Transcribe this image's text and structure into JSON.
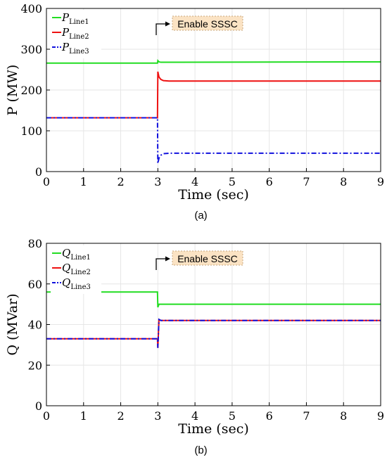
{
  "chart_data": [
    {
      "type": "line",
      "id": "a",
      "sublabel": "(a)",
      "xlabel": "Time (sec)",
      "ylabel": "P (MW)",
      "xlim": [
        0,
        9
      ],
      "ylim": [
        0,
        400
      ],
      "xticks": [
        0,
        1,
        2,
        3,
        4,
        5,
        6,
        7,
        8,
        9
      ],
      "yticks": [
        0,
        100,
        200,
        300,
        400
      ],
      "grid": true,
      "legend_position": "top-left",
      "annotation": {
        "text": "Enable SSSC",
        "x": 3.0
      },
      "series": [
        {
          "name": "P",
          "sub": "Line1",
          "color": "#22dd22",
          "dash": "solid",
          "x": [
            0,
            2.99,
            3.0,
            3.03,
            3.08,
            9
          ],
          "y": [
            266,
            266,
            272,
            269,
            268,
            269
          ]
        },
        {
          "name": "P",
          "sub": "Line2",
          "color": "#ee1111",
          "dash": "solid",
          "x": [
            0,
            2.99,
            3.0,
            3.03,
            3.08,
            3.15,
            3.3,
            9
          ],
          "y": [
            132,
            132,
            245,
            232,
            226,
            223,
            222,
            222
          ]
        },
        {
          "name": "P",
          "sub": "Line3",
          "color": "#1111dd",
          "dash": "dashdot",
          "x": [
            0,
            2.99,
            3.0,
            3.03,
            3.08,
            3.15,
            3.3,
            9
          ],
          "y": [
            132,
            132,
            20,
            33,
            40,
            44,
            45,
            45
          ]
        }
      ]
    },
    {
      "type": "line",
      "id": "b",
      "sublabel": "(b)",
      "xlabel": "Time (sec)",
      "ylabel": "Q (MVar)",
      "xlim": [
        0,
        9
      ],
      "ylim": [
        0,
        80
      ],
      "xticks": [
        0,
        1,
        2,
        3,
        4,
        5,
        6,
        7,
        8,
        9
      ],
      "yticks": [
        0,
        20,
        40,
        60,
        80
      ],
      "grid": true,
      "legend_position": "top-left",
      "annotation": {
        "text": "Enable SSSC",
        "x": 3.0
      },
      "series": [
        {
          "name": "Q",
          "sub": "Line1",
          "color": "#22dd22",
          "dash": "solid",
          "x": [
            0,
            2.99,
            3.0,
            3.03,
            3.08,
            9
          ],
          "y": [
            56,
            56,
            48.5,
            50,
            50,
            50
          ]
        },
        {
          "name": "Q",
          "sub": "Line2",
          "color": "#ee1111",
          "dash": "solid",
          "x": [
            0,
            2.99,
            3.0,
            3.03,
            3.08,
            9
          ],
          "y": [
            33,
            33,
            28.5,
            42.5,
            42,
            42
          ]
        },
        {
          "name": "Q",
          "sub": "Line3",
          "color": "#1111dd",
          "dash": "dashdot",
          "x": [
            0,
            2.99,
            3.0,
            3.03,
            3.08,
            9
          ],
          "y": [
            33,
            33,
            28.5,
            42.5,
            42,
            42
          ]
        }
      ]
    }
  ]
}
